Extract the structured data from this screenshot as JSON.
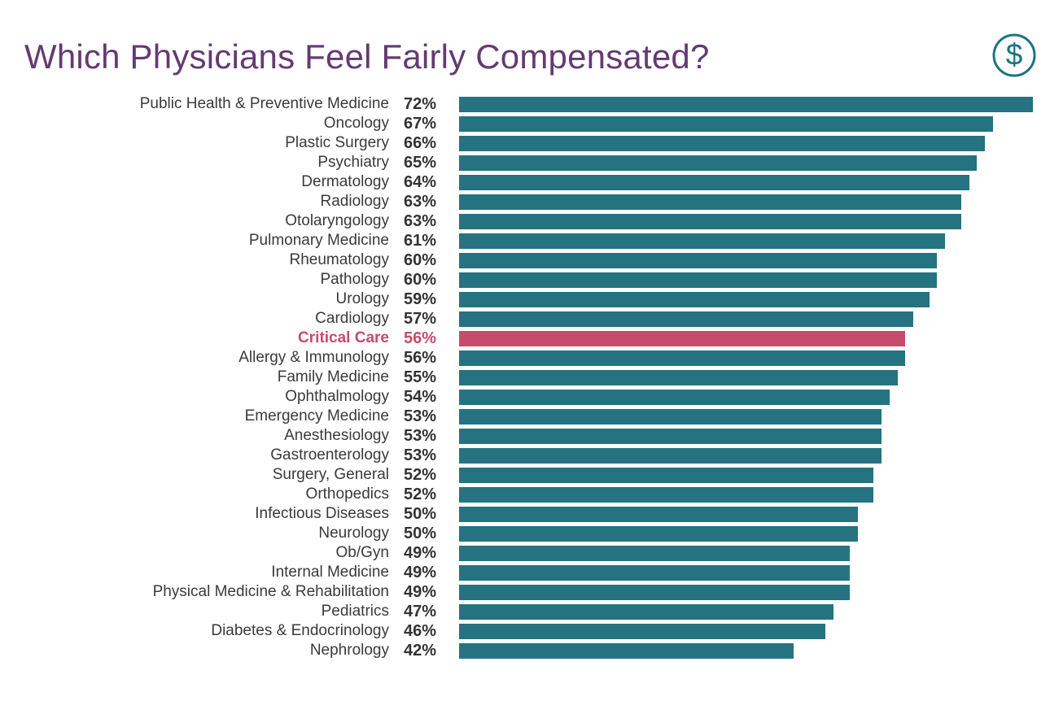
{
  "title": "Which Physicians Feel Fairly Compensated?",
  "header_icon": {
    "name": "dollar-circle-icon",
    "glyph": "$"
  },
  "colors": {
    "title": "#653a72",
    "label": "#3a3a3a",
    "percent": "#333333",
    "bar_teal": "#257380",
    "bar_highlight": "#c74b6c",
    "icon_teal": "#1d7380"
  },
  "chart_data": {
    "type": "bar",
    "orientation": "horizontal",
    "title": "Which Physicians Feel Fairly Compensated?",
    "xlabel": "",
    "ylabel": "",
    "value_suffix": "%",
    "xlim": [
      0,
      72
    ],
    "grid": false,
    "legend": false,
    "highlight_index": 12,
    "highlight_category": "Critical Care",
    "categories": [
      "Public Health & Preventive Medicine",
      "Oncology",
      "Plastic Surgery",
      "Psychiatry",
      "Dermatology",
      "Radiology",
      "Otolaryngology",
      "Pulmonary Medicine",
      "Rheumatology",
      "Pathology",
      "Urology",
      "Cardiology",
      "Critical Care",
      "Allergy & Immunology",
      "Family Medicine",
      "Ophthalmology",
      "Emergency Medicine",
      "Anesthesiology",
      "Gastroenterology",
      "Surgery, General",
      "Orthopedics",
      "Infectious Diseases",
      "Neurology",
      "Ob/Gyn",
      "Internal Medicine",
      "Physical Medicine & Rehabilitation",
      "Pediatrics",
      "Diabetes & Endocrinology",
      "Nephrology"
    ],
    "values": [
      72,
      67,
      66,
      65,
      64,
      63,
      63,
      61,
      60,
      60,
      59,
      57,
      56,
      56,
      55,
      54,
      53,
      53,
      53,
      52,
      52,
      50,
      50,
      49,
      49,
      49,
      47,
      46,
      42
    ]
  }
}
